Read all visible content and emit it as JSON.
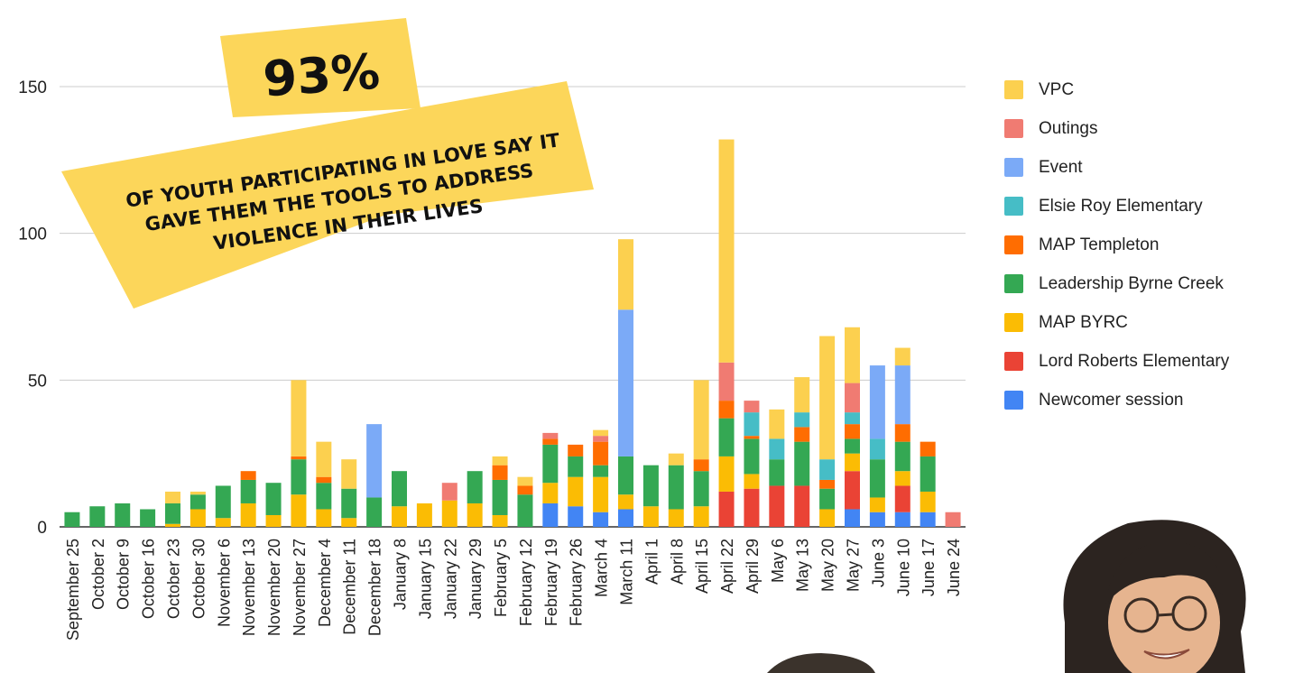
{
  "chart_data": {
    "type": "bar",
    "stacked": true,
    "ylim": [
      0,
      160
    ],
    "yticks": [
      "0",
      "50",
      "100",
      "150"
    ],
    "grid": true,
    "legend_position": "right",
    "categories": [
      "September 25",
      "October 2",
      "October 9",
      "October 16",
      "October 23",
      "October 30",
      "November 6",
      "November 13",
      "November 20",
      "November 27",
      "December 4",
      "December 11",
      "December 18",
      "January 8",
      "January 15",
      "January 22",
      "January 29",
      "February 5",
      "February 12",
      "February 19",
      "February 26",
      "March 4",
      "March 11",
      "April 1",
      "April 8",
      "April 15",
      "April 22",
      "April 29",
      "May 6",
      "May 13",
      "May 20",
      "May 27",
      "June 3",
      "June 10",
      "June 17",
      "June 24"
    ],
    "series": [
      {
        "name": "Newcomer session",
        "color": "#4285f4",
        "values": [
          0,
          0,
          0,
          0,
          0,
          0,
          0,
          0,
          0,
          0,
          0,
          0,
          0,
          0,
          0,
          0,
          0,
          0,
          0,
          8,
          7,
          5,
          6,
          0,
          0,
          0,
          0,
          0,
          0,
          0,
          0,
          6,
          5,
          5,
          5,
          0
        ]
      },
      {
        "name": "Lord Roberts Elementary",
        "color": "#ea4335",
        "values": [
          0,
          0,
          0,
          0,
          0,
          0,
          0,
          0,
          0,
          0,
          0,
          0,
          0,
          0,
          0,
          0,
          0,
          0,
          0,
          0,
          0,
          0,
          0,
          0,
          0,
          0,
          12,
          13,
          14,
          14,
          0,
          13,
          0,
          9,
          0,
          0
        ]
      },
      {
        "name": "MAP BYRC",
        "color": "#fbbc04",
        "values": [
          0,
          0,
          0,
          0,
          1,
          6,
          3,
          8,
          4,
          11,
          6,
          3,
          0,
          7,
          8,
          9,
          8,
          4,
          0,
          7,
          10,
          12,
          5,
          7,
          6,
          7,
          12,
          5,
          0,
          0,
          6,
          6,
          5,
          5,
          7,
          0
        ]
      },
      {
        "name": "Leadership Byrne Creek",
        "color": "#34a853",
        "values": [
          5,
          7,
          8,
          6,
          7,
          5,
          11,
          8,
          11,
          12,
          9,
          10,
          10,
          12,
          0,
          0,
          11,
          12,
          11,
          13,
          7,
          4,
          13,
          14,
          15,
          12,
          13,
          12,
          9,
          15,
          7,
          5,
          13,
          10,
          12,
          0
        ]
      },
      {
        "name": "MAP Templeton",
        "color": "#ff6d01",
        "values": [
          0,
          0,
          0,
          0,
          0,
          0,
          0,
          3,
          0,
          1,
          2,
          0,
          0,
          0,
          0,
          0,
          0,
          5,
          3,
          2,
          4,
          8,
          0,
          0,
          0,
          4,
          6,
          1,
          0,
          5,
          3,
          5,
          0,
          6,
          5,
          0
        ]
      },
      {
        "name": "Elsie Roy Elementary",
        "color": "#46bdc6",
        "values": [
          0,
          0,
          0,
          0,
          0,
          0,
          0,
          0,
          0,
          0,
          0,
          0,
          0,
          0,
          0,
          0,
          0,
          0,
          0,
          0,
          0,
          0,
          0,
          0,
          0,
          0,
          0,
          8,
          7,
          5,
          7,
          4,
          7,
          0,
          0,
          0
        ]
      },
      {
        "name": "Event",
        "color": "#7baaf7",
        "values": [
          0,
          0,
          0,
          0,
          0,
          0,
          0,
          0,
          0,
          0,
          0,
          0,
          25,
          0,
          0,
          0,
          0,
          0,
          0,
          0,
          0,
          0,
          50,
          0,
          0,
          0,
          0,
          0,
          0,
          0,
          0,
          0,
          25,
          20,
          0,
          0
        ]
      },
      {
        "name": "Outings",
        "color": "#f07b72",
        "values": [
          0,
          0,
          0,
          0,
          0,
          0,
          0,
          0,
          0,
          0,
          0,
          0,
          0,
          0,
          0,
          6,
          0,
          0,
          0,
          2,
          0,
          2,
          0,
          0,
          0,
          0,
          13,
          4,
          0,
          0,
          0,
          10,
          0,
          0,
          0,
          5
        ]
      },
      {
        "name": "VPC",
        "color": "#fcd04f",
        "values": [
          0,
          0,
          0,
          0,
          4,
          1,
          0,
          0,
          0,
          26,
          12,
          10,
          0,
          0,
          0,
          0,
          0,
          3,
          3,
          0,
          0,
          2,
          24,
          0,
          4,
          27,
          76,
          0,
          10,
          12,
          42,
          19,
          0,
          6,
          0,
          0
        ]
      }
    ]
  },
  "callout": {
    "stat": "93%",
    "lines": [
      "OF YOUTH PARTICIPATING IN LOVE SAY IT",
      "GAVE THEM THE TOOLS TO ADDRESS",
      "VIOLENCE IN THEIR LIVES"
    ],
    "bg_color": "#fcd65a"
  },
  "legend_order": [
    "VPC",
    "Outings",
    "Event",
    "Elsie Roy Elementary",
    "MAP Templeton",
    "Leadership Byrne Creek",
    "MAP BYRC",
    "Lord Roberts Elementary",
    "Newcomer session"
  ]
}
